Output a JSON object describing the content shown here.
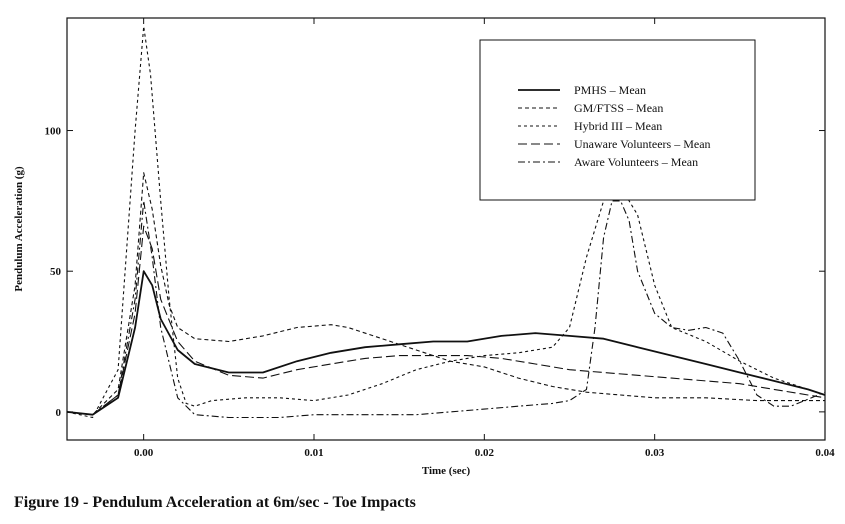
{
  "figure_caption": "Figure 19 - Pendulum Acceleration at 6m/sec - Toe Impacts",
  "chart_data": {
    "type": "line",
    "title": "",
    "xlabel": "Time (sec)",
    "ylabel": "Pendulum Acceleration (g)",
    "xlim": [
      -0.0045,
      0.04
    ],
    "ylim": [
      -10,
      140
    ],
    "xticks": [
      0.0,
      0.01,
      0.02,
      0.03,
      0.04
    ],
    "xtick_labels": [
      "0.00",
      "0.01",
      "0.02",
      "0.03",
      "0.04"
    ],
    "yticks": [
      0,
      50,
      100
    ],
    "ytick_labels": [
      "0",
      "50",
      "100"
    ],
    "grid": false,
    "legend_position": "top-right",
    "series": [
      {
        "name": "PMHS – Mean",
        "dash": "solid",
        "width": 1.8,
        "points": [
          [
            -0.0045,
            0
          ],
          [
            -0.003,
            -1
          ],
          [
            -0.0015,
            5
          ],
          [
            -0.0005,
            30
          ],
          [
            0,
            50
          ],
          [
            0.0005,
            45
          ],
          [
            0.001,
            33
          ],
          [
            0.002,
            22
          ],
          [
            0.003,
            17
          ],
          [
            0.005,
            14
          ],
          [
            0.007,
            14
          ],
          [
            0.009,
            18
          ],
          [
            0.011,
            21
          ],
          [
            0.013,
            23
          ],
          [
            0.015,
            24
          ],
          [
            0.017,
            25
          ],
          [
            0.019,
            25
          ],
          [
            0.021,
            27
          ],
          [
            0.023,
            28
          ],
          [
            0.025,
            27
          ],
          [
            0.027,
            26
          ],
          [
            0.029,
            23
          ],
          [
            0.031,
            20
          ],
          [
            0.033,
            17
          ],
          [
            0.035,
            14
          ],
          [
            0.037,
            11
          ],
          [
            0.039,
            8
          ],
          [
            0.04,
            6
          ]
        ]
      },
      {
        "name": "GM/FTSS – Mean",
        "dash": "4,3",
        "width": 1.1,
        "points": [
          [
            -0.0045,
            0
          ],
          [
            -0.003,
            -1
          ],
          [
            -0.0015,
            8
          ],
          [
            -0.0005,
            45
          ],
          [
            0,
            85
          ],
          [
            0.0005,
            72
          ],
          [
            0.001,
            52
          ],
          [
            0.0015,
            38
          ],
          [
            0.002,
            30
          ],
          [
            0.003,
            26
          ],
          [
            0.005,
            25
          ],
          [
            0.007,
            27
          ],
          [
            0.009,
            30
          ],
          [
            0.011,
            31
          ],
          [
            0.012,
            30
          ],
          [
            0.014,
            26
          ],
          [
            0.016,
            22
          ],
          [
            0.018,
            18
          ],
          [
            0.02,
            16
          ],
          [
            0.022,
            12
          ],
          [
            0.024,
            9
          ],
          [
            0.026,
            7
          ],
          [
            0.028,
            6
          ],
          [
            0.03,
            5
          ],
          [
            0.033,
            5
          ],
          [
            0.036,
            4
          ],
          [
            0.04,
            4
          ]
        ]
      },
      {
        "name": "Hybrid III – Mean",
        "dash": "3,3",
        "width": 1.1,
        "points": [
          [
            -0.0045,
            0
          ],
          [
            -0.003,
            -2
          ],
          [
            -0.0015,
            15
          ],
          [
            -0.0005,
            100
          ],
          [
            0,
            137
          ],
          [
            0.0004,
            120
          ],
          [
            0.001,
            75
          ],
          [
            0.0015,
            40
          ],
          [
            0.002,
            12
          ],
          [
            0.0025,
            3
          ],
          [
            0.003,
            2
          ],
          [
            0.004,
            4
          ],
          [
            0.006,
            5
          ],
          [
            0.008,
            5
          ],
          [
            0.01,
            4
          ],
          [
            0.012,
            6
          ],
          [
            0.014,
            10
          ],
          [
            0.016,
            15
          ],
          [
            0.018,
            18
          ],
          [
            0.02,
            20
          ],
          [
            0.022,
            21
          ],
          [
            0.024,
            23
          ],
          [
            0.025,
            30
          ],
          [
            0.026,
            55
          ],
          [
            0.027,
            75
          ],
          [
            0.028,
            80
          ],
          [
            0.029,
            70
          ],
          [
            0.03,
            45
          ],
          [
            0.031,
            30
          ],
          [
            0.033,
            25
          ],
          [
            0.035,
            18
          ],
          [
            0.037,
            12
          ],
          [
            0.039,
            8
          ],
          [
            0.04,
            6
          ]
        ]
      },
      {
        "name": "Unaware Volunteers – Mean",
        "dash": "9,4",
        "width": 1.1,
        "points": [
          [
            -0.0045,
            0
          ],
          [
            -0.003,
            -1
          ],
          [
            -0.0015,
            6
          ],
          [
            -0.0005,
            35
          ],
          [
            0,
            66
          ],
          [
            0.0005,
            58
          ],
          [
            0.001,
            40
          ],
          [
            0.002,
            25
          ],
          [
            0.003,
            18
          ],
          [
            0.005,
            13
          ],
          [
            0.007,
            12
          ],
          [
            0.009,
            15
          ],
          [
            0.011,
            17
          ],
          [
            0.013,
            19
          ],
          [
            0.015,
            20
          ],
          [
            0.017,
            20
          ],
          [
            0.019,
            20
          ],
          [
            0.021,
            19
          ],
          [
            0.023,
            17
          ],
          [
            0.025,
            15
          ],
          [
            0.027,
            14
          ],
          [
            0.029,
            13
          ],
          [
            0.031,
            12
          ],
          [
            0.033,
            11
          ],
          [
            0.035,
            10
          ],
          [
            0.037,
            8
          ],
          [
            0.039,
            6
          ],
          [
            0.04,
            5
          ]
        ]
      },
      {
        "name": "Aware Volunteers – Mean",
        "dash": "7,3,2,3",
        "width": 1.1,
        "points": [
          [
            -0.0045,
            0
          ],
          [
            -0.003,
            -1
          ],
          [
            -0.0015,
            6
          ],
          [
            -0.0005,
            40
          ],
          [
            0,
            75
          ],
          [
            0.0005,
            55
          ],
          [
            0.001,
            30
          ],
          [
            0.002,
            5
          ],
          [
            0.003,
            -1
          ],
          [
            0.005,
            -2
          ],
          [
            0.008,
            -2
          ],
          [
            0.01,
            -1
          ],
          [
            0.012,
            -1
          ],
          [
            0.014,
            -1
          ],
          [
            0.016,
            -1
          ],
          [
            0.018,
            0
          ],
          [
            0.02,
            1
          ],
          [
            0.022,
            2
          ],
          [
            0.024,
            3
          ],
          [
            0.025,
            4
          ],
          [
            0.026,
            8
          ],
          [
            0.0265,
            30
          ],
          [
            0.027,
            62
          ],
          [
            0.0275,
            75
          ],
          [
            0.028,
            75
          ],
          [
            0.0285,
            68
          ],
          [
            0.029,
            50
          ],
          [
            0.03,
            35
          ],
          [
            0.031,
            30
          ],
          [
            0.032,
            29
          ],
          [
            0.033,
            30
          ],
          [
            0.034,
            28
          ],
          [
            0.035,
            18
          ],
          [
            0.036,
            6
          ],
          [
            0.037,
            2
          ],
          [
            0.038,
            2
          ],
          [
            0.04,
            7
          ]
        ]
      }
    ]
  }
}
